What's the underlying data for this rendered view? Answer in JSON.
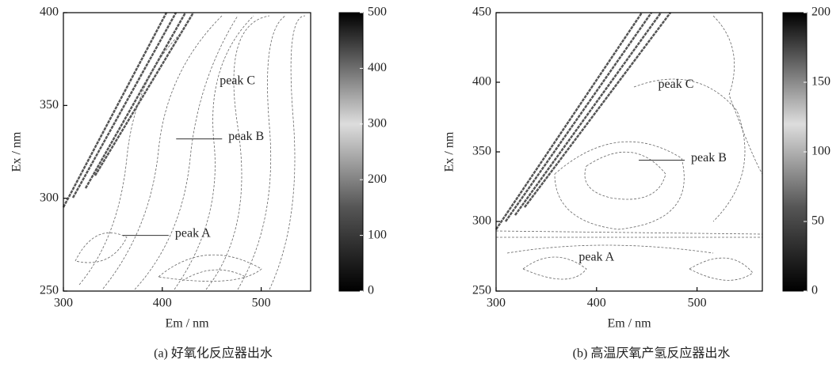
{
  "chart_data": [
    {
      "type": "contour",
      "title": "(a) 好氧化反应器出水",
      "x_label": "Em / nm",
      "y_label": "Ex / nm",
      "xlim": [
        300,
        550
      ],
      "ylim": [
        250,
        400
      ],
      "xticks": [
        300,
        400,
        500
      ],
      "yticks": [
        250,
        300,
        350,
        400
      ],
      "colorbar": {
        "lim": [
          0,
          500
        ],
        "ticks": [
          0,
          100,
          200,
          300,
          400,
          500
        ]
      },
      "annotations": [
        {
          "text": "peak C",
          "x": 476,
          "y": 363,
          "leader": false
        },
        {
          "text": "peak B",
          "x": 414,
          "y": 332,
          "leader": true
        },
        {
          "text": "peak A",
          "x": 360,
          "y": 280,
          "leader": true
        }
      ]
    },
    {
      "type": "contour",
      "title": "(b) 高温厌氧产氢反应器出水",
      "x_label": "Em / nm",
      "y_label": "Ex / nm",
      "xlim": [
        300,
        565
      ],
      "ylim": [
        250,
        450
      ],
      "xticks": [
        300,
        400,
        500
      ],
      "yticks": [
        250,
        300,
        350,
        400,
        450
      ],
      "colorbar": {
        "lim": [
          0,
          200
        ],
        "ticks": [
          0,
          50,
          100,
          150,
          200
        ]
      },
      "annotations": [
        {
          "text": "peak C",
          "x": 479,
          "y": 398,
          "leader": false
        },
        {
          "text": "peak B",
          "x": 442,
          "y": 344,
          "leader": true
        },
        {
          "text": "peak A",
          "x": 400,
          "y": 274,
          "leader": false
        }
      ]
    }
  ]
}
